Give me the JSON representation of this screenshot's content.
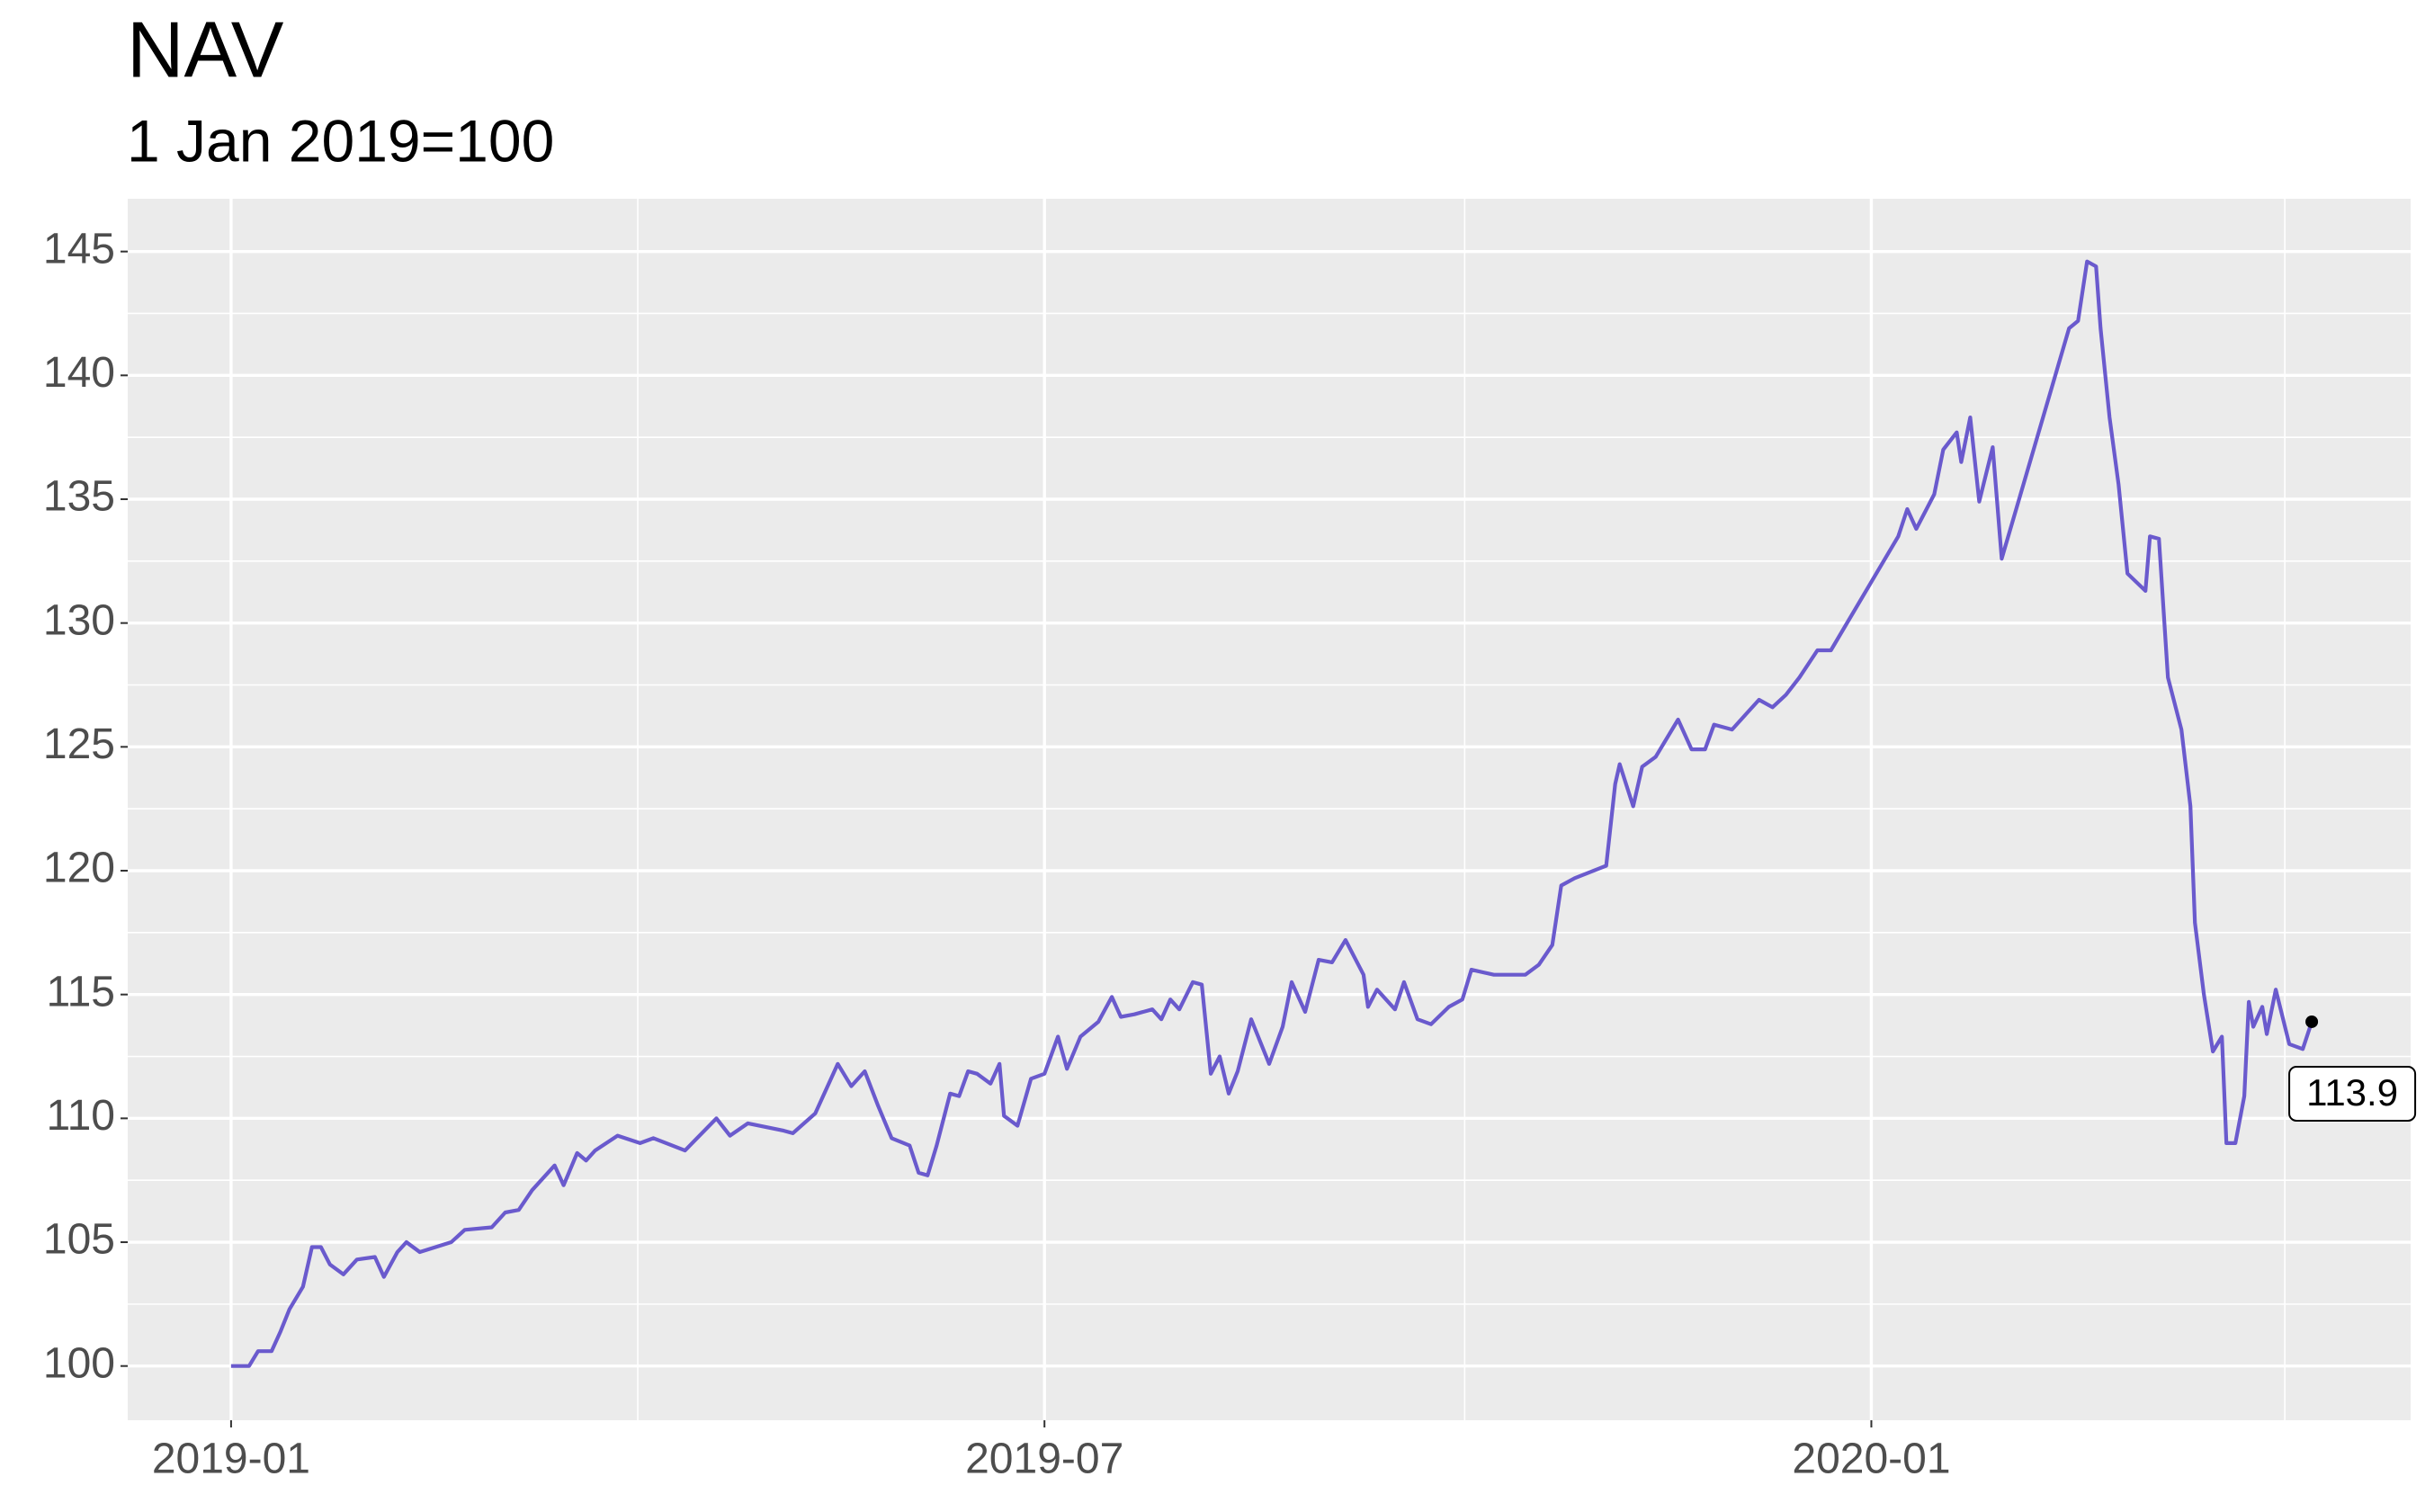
{
  "chart_data": {
    "type": "line",
    "title": "NAV",
    "subtitle": "1 Jan 2019=100",
    "x": [
      "2019-01-01",
      "2019-01-05",
      "2019-01-07",
      "2019-01-10",
      "2019-01-12",
      "2019-01-14",
      "2019-01-17",
      "2019-01-19",
      "2019-01-21",
      "2019-01-23",
      "2019-01-26",
      "2019-01-29",
      "2019-02-02",
      "2019-02-04",
      "2019-02-07",
      "2019-02-09",
      "2019-02-12",
      "2019-02-19",
      "2019-02-22",
      "2019-02-28",
      "2019-03-03",
      "2019-03-06",
      "2019-03-09",
      "2019-03-14",
      "2019-03-16",
      "2019-03-19",
      "2019-03-21",
      "2019-03-23",
      "2019-03-28",
      "2019-04-02",
      "2019-04-05",
      "2019-04-12",
      "2019-04-19",
      "2019-04-22",
      "2019-04-26",
      "2019-05-04",
      "2019-05-06",
      "2019-05-11",
      "2019-05-14",
      "2019-05-16",
      "2019-05-19",
      "2019-05-22",
      "2019-05-25",
      "2019-05-28",
      "2019-06-01",
      "2019-06-03",
      "2019-06-05",
      "2019-06-07",
      "2019-06-10",
      "2019-06-12",
      "2019-06-14",
      "2019-06-16",
      "2019-06-19",
      "2019-06-21",
      "2019-06-22",
      "2019-06-25",
      "2019-06-28",
      "2019-07-01",
      "2019-07-04",
      "2019-07-06",
      "2019-07-09",
      "2019-07-13",
      "2019-07-16",
      "2019-07-18",
      "2019-07-21",
      "2019-07-25",
      "2019-07-27",
      "2019-07-29",
      "2019-07-31",
      "2019-08-03",
      "2019-08-05",
      "2019-08-07",
      "2019-08-09",
      "2019-08-11",
      "2019-08-13",
      "2019-08-16",
      "2019-08-20",
      "2019-08-23",
      "2019-08-25",
      "2019-08-28",
      "2019-08-31",
      "2019-09-03",
      "2019-09-06",
      "2019-09-10",
      "2019-09-11",
      "2019-09-13",
      "2019-09-17",
      "2019-09-19",
      "2019-09-22",
      "2019-09-25",
      "2019-09-29",
      "2019-10-02",
      "2019-10-04",
      "2019-10-09",
      "2019-10-14",
      "2019-10-16",
      "2019-10-19",
      "2019-10-22",
      "2019-10-24",
      "2019-10-27",
      "2019-11-03",
      "2019-11-05",
      "2019-11-06",
      "2019-11-09",
      "2019-11-11",
      "2019-11-14",
      "2019-11-19",
      "2019-11-22",
      "2019-11-25",
      "2019-11-27",
      "2019-12-01",
      "2019-12-04",
      "2019-12-07",
      "2019-12-10",
      "2019-12-13",
      "2019-12-16",
      "2019-12-20",
      "2019-12-23",
      "2020-01-07",
      "2020-01-09",
      "2020-01-11",
      "2020-01-15",
      "2020-01-17",
      "2020-01-20",
      "2020-01-21",
      "2020-01-23",
      "2020-01-25",
      "2020-01-28",
      "2020-01-30",
      "2020-02-14",
      "2020-02-16",
      "2020-02-18",
      "2020-02-20",
      "2020-02-21",
      "2020-02-23",
      "2020-02-25",
      "2020-02-27",
      "2020-03-02",
      "2020-03-03",
      "2020-03-05",
      "2020-03-07",
      "2020-03-10",
      "2020-03-12",
      "2020-03-13",
      "2020-03-15",
      "2020-03-17",
      "2020-03-19",
      "2020-03-20",
      "2020-03-22",
      "2020-03-24",
      "2020-03-25",
      "2020-03-26",
      "2020-03-28",
      "2020-03-29",
      "2020-03-31",
      "2020-04-03",
      "2020-04-06",
      "2020-04-08"
    ],
    "values": [
      100.0,
      100.0,
      100.6,
      100.6,
      101.4,
      102.3,
      103.2,
      104.8,
      104.8,
      104.1,
      103.7,
      104.3,
      104.4,
      103.6,
      104.6,
      105.0,
      104.6,
      105.0,
      105.5,
      105.6,
      106.2,
      106.3,
      107.1,
      108.1,
      107.3,
      108.6,
      108.3,
      108.7,
      109.3,
      109.0,
      109.2,
      108.7,
      110.0,
      109.3,
      109.8,
      109.5,
      109.4,
      110.2,
      111.4,
      112.2,
      111.3,
      111.9,
      110.5,
      109.2,
      108.9,
      107.8,
      107.7,
      108.9,
      111.0,
      110.9,
      111.9,
      111.8,
      111.4,
      112.2,
      110.1,
      109.7,
      111.6,
      111.8,
      113.3,
      112.0,
      113.3,
      113.9,
      114.9,
      114.1,
      114.2,
      114.4,
      114.0,
      114.8,
      114.4,
      115.5,
      115.4,
      111.8,
      112.5,
      111.0,
      111.9,
      114.0,
      112.2,
      113.7,
      115.5,
      114.3,
      116.4,
      116.3,
      117.2,
      115.8,
      114.5,
      115.2,
      114.4,
      115.5,
      114.0,
      113.8,
      114.5,
      114.8,
      116.0,
      115.8,
      115.8,
      115.8,
      116.2,
      117.0,
      119.4,
      119.7,
      120.2,
      123.5,
      124.3,
      122.6,
      124.2,
      124.6,
      126.1,
      124.9,
      124.9,
      125.9,
      125.7,
      126.3,
      126.9,
      126.6,
      127.1,
      127.8,
      128.9,
      128.9,
      133.5,
      134.6,
      133.8,
      135.2,
      137.0,
      137.7,
      136.5,
      138.3,
      134.9,
      137.1,
      132.6,
      141.9,
      142.2,
      144.6,
      144.4,
      141.9,
      138.3,
      135.6,
      132.0,
      131.3,
      133.5,
      133.4,
      127.8,
      125.7,
      122.6,
      117.9,
      115.0,
      112.7,
      113.3,
      109.0,
      109.0,
      110.9,
      114.7,
      113.7,
      114.5,
      113.4,
      115.2,
      113.0,
      112.8,
      113.9
    ],
    "color": "#6a5acd",
    "xlim": [
      "2018-12-09",
      "2020-04-30"
    ],
    "xticks": [
      {
        "value": "2019-01-01",
        "label": "2019-01"
      },
      {
        "value": "2019-07-01",
        "label": "2019-07"
      },
      {
        "value": "2020-01-01",
        "label": "2020-01"
      }
    ],
    "ylim": [
      97.81,
      147.13
    ],
    "yticks": [
      100,
      105,
      110,
      115,
      120,
      125,
      130,
      135,
      140,
      145
    ],
    "grid": true,
    "end_label": true
  }
}
